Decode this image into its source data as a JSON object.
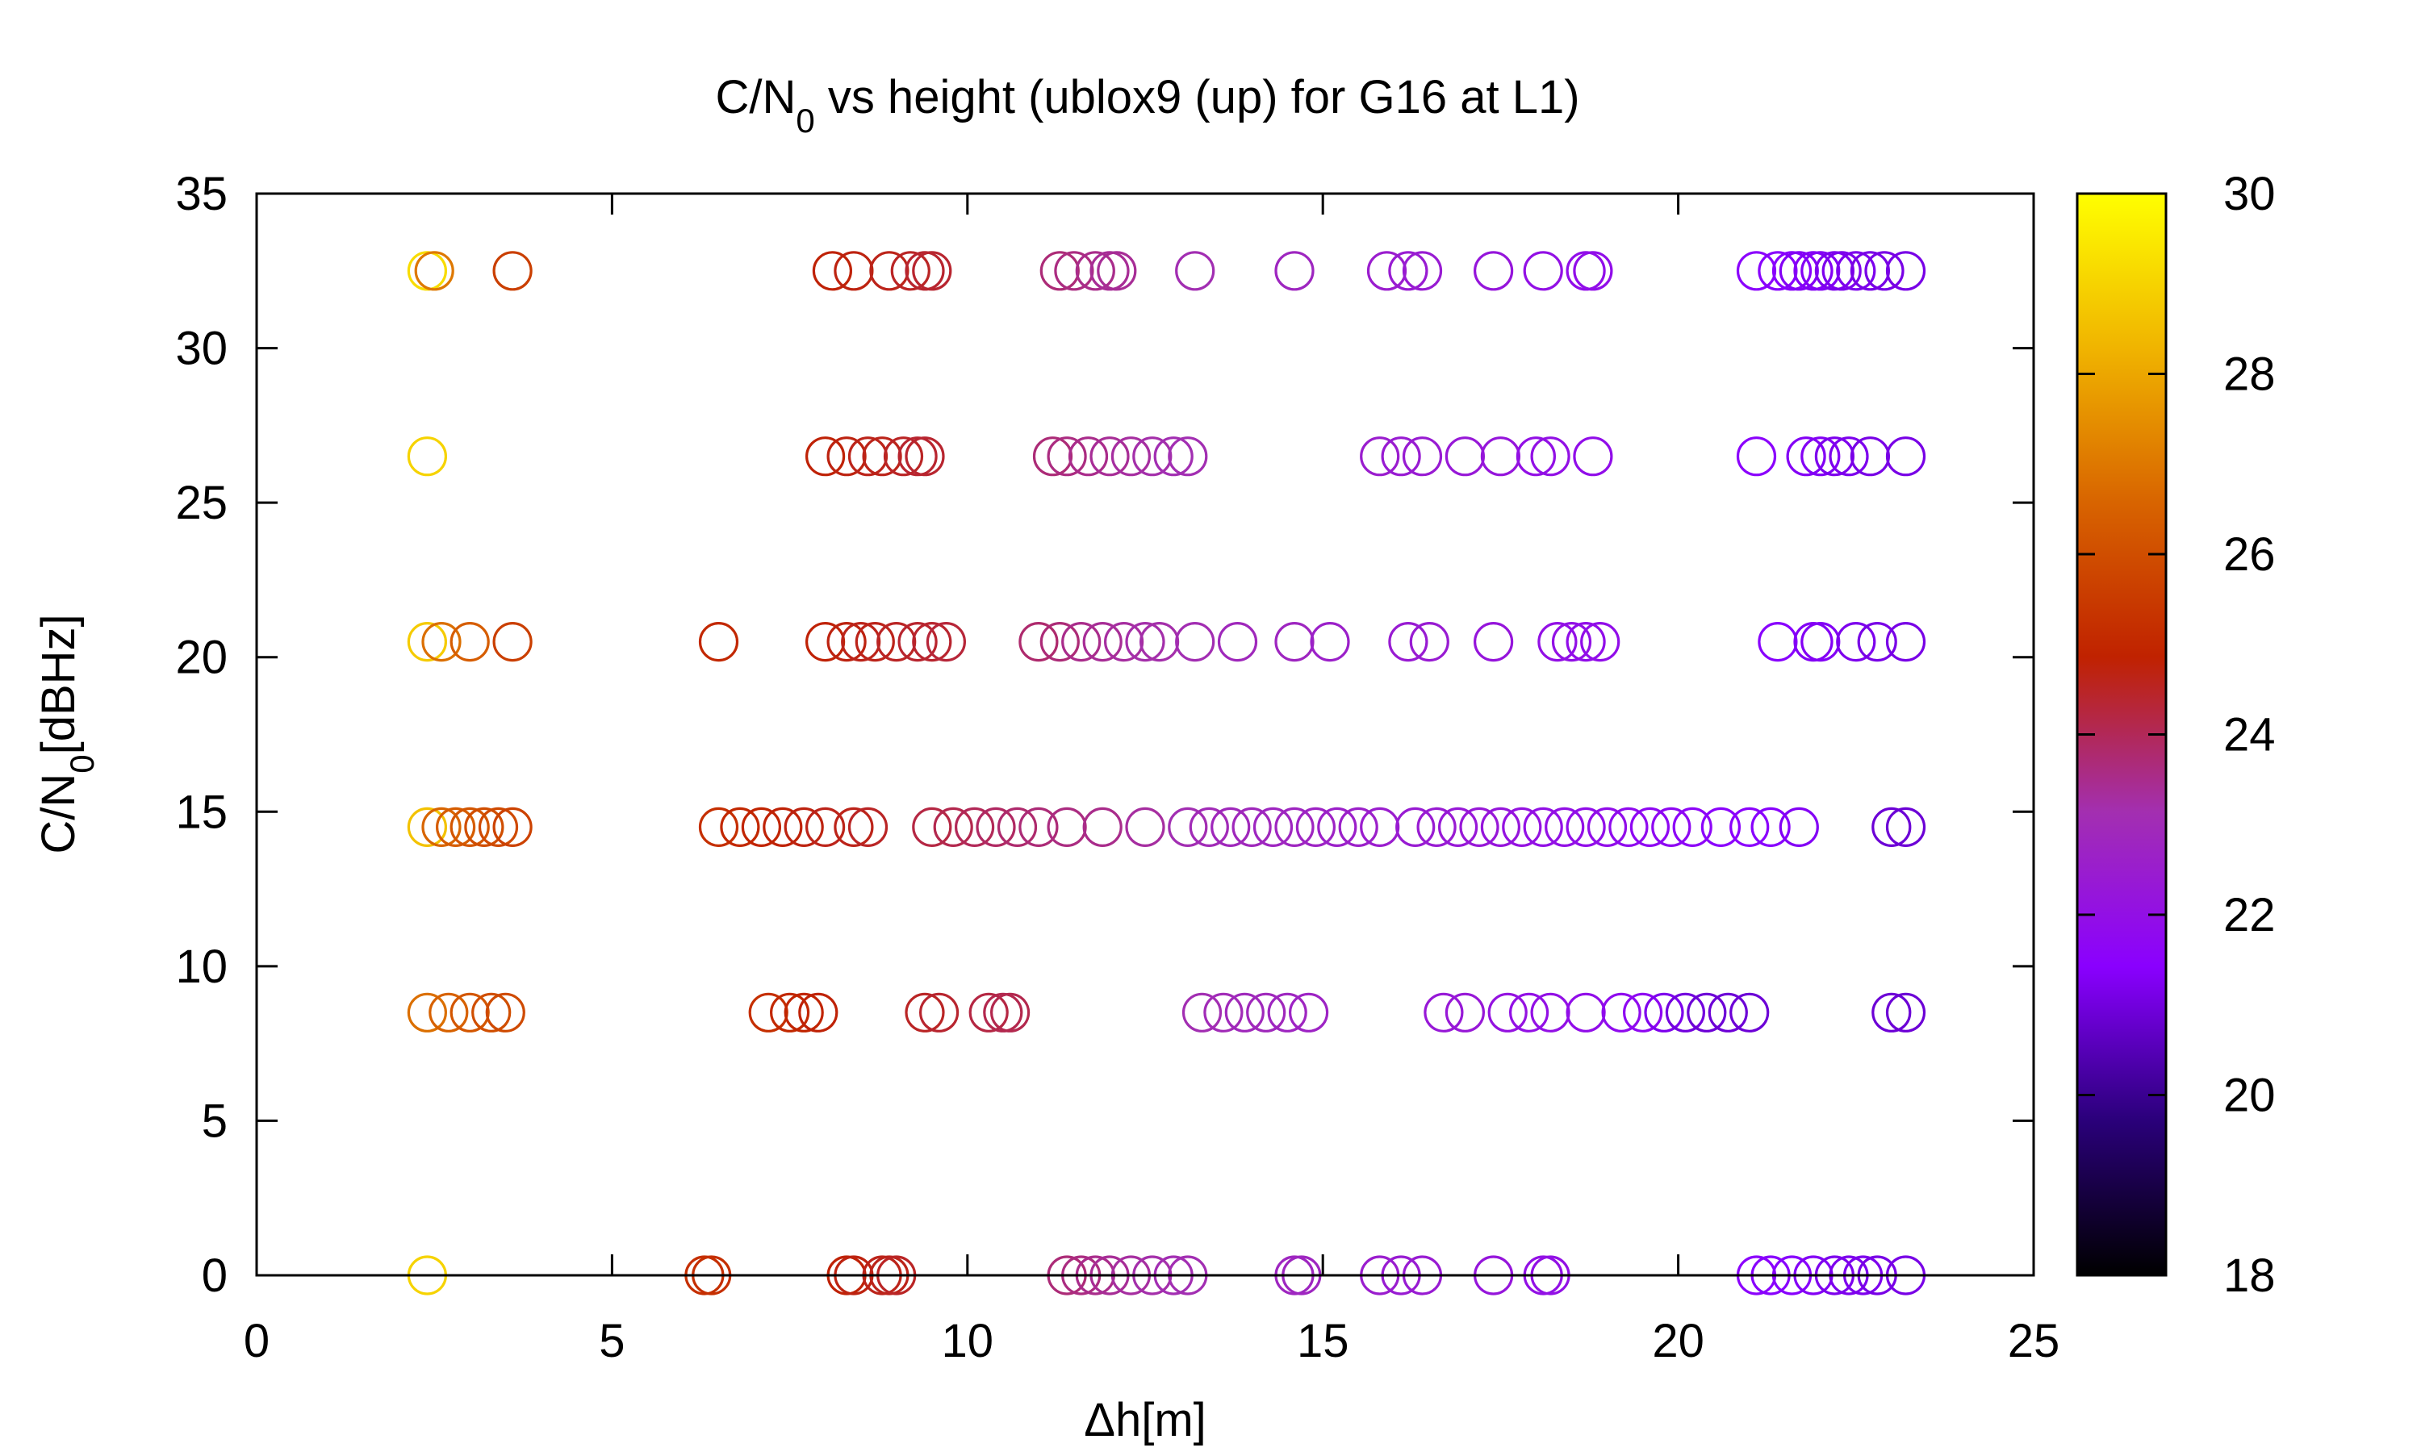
{
  "chart_data": {
    "type": "scatter",
    "title": {
      "main": "C/N",
      "sub": "0",
      "rest": " vs height (ublox9 (up) for G16 at L1)"
    },
    "xlabel": "Δh[m]",
    "ylabel": {
      "main": "C/N",
      "sub": "0",
      "rest": "[dBHz]"
    },
    "xlim": [
      0,
      25
    ],
    "ylim": [
      0,
      35
    ],
    "xticks": [
      0,
      5,
      10,
      15,
      20,
      25
    ],
    "yticks": [
      0,
      5,
      10,
      15,
      20,
      25,
      30,
      35
    ],
    "grid": false,
    "marker": "open-circle",
    "colorbar": {
      "range": [
        18,
        30
      ],
      "ticks": [
        18,
        20,
        22,
        24,
        26,
        28,
        30
      ],
      "palette": [
        "#000000",
        "#2a007a",
        "#8a00ff",
        "#a32fb0",
        "#c02200",
        "#d86400",
        "#f0b400",
        "#ffff00"
      ]
    },
    "series": [
      {
        "y": 32.5,
        "x": [
          2.4,
          2.5,
          3.6,
          8.1,
          8.4,
          8.9,
          9.2,
          9.4,
          9.5,
          11.3,
          11.5,
          11.8,
          12.0,
          12.1,
          13.2,
          14.6,
          15.9,
          16.2,
          16.4,
          17.4,
          18.1,
          18.7,
          18.8,
          21.1,
          21.4,
          21.6,
          21.7,
          21.9,
          22.0,
          22.2,
          22.3,
          22.5,
          22.7,
          22.9,
          23.2
        ],
        "c": [
          29.2,
          27.0,
          25.6,
          24.8,
          24.7,
          24.6,
          24.5,
          24.4,
          24.4,
          23.7,
          23.6,
          23.5,
          23.4,
          23.4,
          23.1,
          22.8,
          22.5,
          22.4,
          22.4,
          22.2,
          22.0,
          21.9,
          21.9,
          21.5,
          21.4,
          21.4,
          21.3,
          21.3,
          21.3,
          21.2,
          21.2,
          21.2,
          21.1,
          21.1,
          21.1
        ]
      },
      {
        "y": 26.5,
        "x": [
          2.4,
          8.0,
          8.3,
          8.6,
          8.8,
          9.1,
          9.3,
          9.4,
          11.2,
          11.4,
          11.7,
          12.0,
          12.3,
          12.6,
          12.9,
          13.1,
          15.8,
          16.1,
          16.4,
          17.0,
          17.5,
          18.0,
          18.2,
          18.8,
          21.1,
          21.8,
          22.0,
          22.2,
          22.4,
          22.7,
          23.2
        ],
        "c": [
          29.0,
          24.8,
          24.7,
          24.6,
          24.6,
          24.5,
          24.4,
          24.4,
          23.7,
          23.6,
          23.5,
          23.4,
          23.3,
          23.2,
          23.1,
          23.1,
          22.5,
          22.4,
          22.4,
          22.3,
          22.2,
          22.0,
          22.0,
          21.9,
          21.5,
          21.3,
          21.3,
          21.2,
          21.2,
          21.1,
          21.1
        ]
      },
      {
        "y": 20.5,
        "x": [
          2.4,
          2.6,
          3.0,
          3.6,
          6.5,
          8.0,
          8.3,
          8.5,
          8.7,
          9.0,
          9.3,
          9.5,
          9.7,
          11.0,
          11.3,
          11.6,
          11.9,
          12.2,
          12.5,
          12.7,
          13.2,
          13.8,
          14.6,
          15.1,
          16.2,
          16.5,
          17.4,
          18.3,
          18.5,
          18.7,
          18.9,
          21.4,
          21.9,
          22.0,
          22.5,
          22.8,
          23.2
        ],
        "c": [
          28.8,
          26.8,
          26.4,
          25.6,
          25.0,
          24.8,
          24.7,
          24.6,
          24.6,
          24.5,
          24.4,
          24.4,
          24.3,
          23.8,
          23.7,
          23.5,
          23.4,
          23.3,
          23.2,
          23.2,
          23.1,
          22.9,
          22.8,
          22.6,
          22.4,
          22.4,
          22.2,
          22.0,
          22.0,
          21.9,
          21.9,
          21.4,
          21.3,
          21.3,
          21.2,
          21.1,
          21.1
        ]
      },
      {
        "y": 14.5,
        "x": [
          2.4,
          2.6,
          2.8,
          3.0,
          3.2,
          3.4,
          3.6,
          6.5,
          6.8,
          7.1,
          7.4,
          7.7,
          8.0,
          8.4,
          8.6,
          9.5,
          9.8,
          10.1,
          10.4,
          10.7,
          11.0,
          11.4,
          11.9,
          12.5,
          13.1,
          13.4,
          13.7,
          14.0,
          14.3,
          14.6,
          14.9,
          15.2,
          15.5,
          15.8,
          16.3,
          16.6,
          16.9,
          17.2,
          17.5,
          17.8,
          18.1,
          18.4,
          18.7,
          19.0,
          19.3,
          19.6,
          19.9,
          20.2,
          20.6,
          21.0,
          21.3,
          21.7,
          23.0,
          23.2
        ],
        "c": [
          28.6,
          26.6,
          26.4,
          26.2,
          26.0,
          25.9,
          25.7,
          25.2,
          25.0,
          24.9,
          24.8,
          24.7,
          24.6,
          24.6,
          24.5,
          24.2,
          24.1,
          24.0,
          23.9,
          23.8,
          23.7,
          23.6,
          23.5,
          23.3,
          23.1,
          23.0,
          22.9,
          22.9,
          22.8,
          22.8,
          22.7,
          22.6,
          22.6,
          22.5,
          22.4,
          22.4,
          22.3,
          22.3,
          22.2,
          22.1,
          22.0,
          22.0,
          21.9,
          21.9,
          21.8,
          21.7,
          21.7,
          21.6,
          21.5,
          21.5,
          21.4,
          21.3,
          20.9,
          20.9
        ]
      },
      {
        "y": 8.5,
        "x": [
          2.4,
          2.7,
          3.0,
          3.3,
          3.5,
          7.2,
          7.5,
          7.7,
          7.9,
          9.4,
          9.6,
          10.3,
          10.5,
          10.6,
          13.3,
          13.6,
          13.9,
          14.2,
          14.5,
          14.8,
          16.7,
          17.0,
          17.6,
          17.9,
          18.2,
          18.7,
          19.2,
          19.5,
          19.8,
          20.1,
          20.4,
          20.7,
          21.0,
          23.0,
          23.2
        ],
        "c": [
          26.8,
          26.5,
          26.2,
          26.0,
          25.9,
          25.2,
          25.0,
          24.9,
          24.8,
          24.5,
          24.4,
          24.2,
          24.1,
          24.1,
          23.1,
          23.0,
          22.9,
          22.9,
          22.8,
          22.7,
          22.3,
          22.3,
          22.1,
          22.0,
          22.0,
          21.9,
          21.8,
          21.7,
          21.2,
          21.0,
          20.9,
          20.9,
          20.9,
          20.9,
          20.9
        ]
      },
      {
        "y": 0,
        "x": [
          2.4,
          6.3,
          6.4,
          8.3,
          8.4,
          8.8,
          8.9,
          9.0,
          11.4,
          11.6,
          11.8,
          12.0,
          12.3,
          12.6,
          12.9,
          13.1,
          14.6,
          14.7,
          15.8,
          16.1,
          16.4,
          17.4,
          18.1,
          18.2,
          21.1,
          21.3,
          21.6,
          21.9,
          22.2,
          22.4,
          22.6,
          22.8,
          23.2
        ],
        "c": [
          29.0,
          25.2,
          25.2,
          24.8,
          24.7,
          24.6,
          24.6,
          24.5,
          23.7,
          23.6,
          23.5,
          23.4,
          23.3,
          23.2,
          23.1,
          23.1,
          22.8,
          22.8,
          22.5,
          22.4,
          22.4,
          22.2,
          22.0,
          22.0,
          21.5,
          21.4,
          21.4,
          21.3,
          21.2,
          21.2,
          21.2,
          21.1,
          21.1
        ]
      }
    ]
  }
}
